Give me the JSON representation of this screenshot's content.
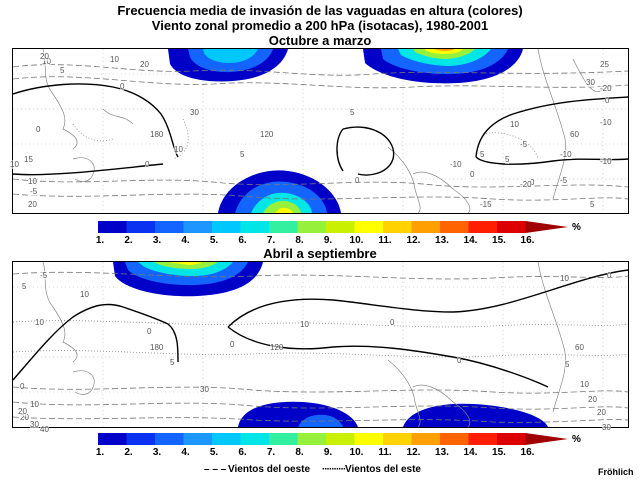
{
  "titles": {
    "line1": "Frecuencia media de invasión de las vaguadas en altura (colores)",
    "line2": "Viento zonal promedio a 200 hPa (isotacas), 1980-2001",
    "panel1": "Octubre a marzo",
    "panel2": "Abril a septiembre"
  },
  "colorbar": {
    "unit": "%",
    "labels": [
      "1.",
      "2.",
      "3.",
      "4.",
      "5.",
      "6.",
      "7.",
      "8.",
      "9.",
      "10.",
      "11.",
      "12.",
      "13.",
      "14.",
      "15.",
      "16."
    ],
    "colors": [
      "#0000c8",
      "#0a32f0",
      "#1464ff",
      "#1e96ff",
      "#00c8ff",
      "#00e6e6",
      "#32f0a0",
      "#96f03c",
      "#c8f000",
      "#ffff00",
      "#ffd200",
      "#ffa000",
      "#ff6400",
      "#ff1e00",
      "#dc0000",
      "#a00000"
    ]
  },
  "legend": {
    "westerly": "Vientos del oeste",
    "easterly": "Vientos del este"
  },
  "credit": "Fröhlich",
  "contour_labels": {
    "panel1": [
      "10",
      "5",
      "0",
      "15",
      "10",
      "10",
      "10",
      "30",
      "0",
      "25",
      "0",
      "-5",
      "-10",
      "5",
      "5",
      "5",
      "0",
      "-10",
      "-20",
      "20",
      "-5",
      "10",
      "20",
      "30",
      "-10",
      "0",
      "5",
      "5",
      "10",
      "20",
      "0",
      "0",
      "-5",
      "-10",
      "-15",
      "-20",
      "180",
      "120",
      "60"
    ],
    "panel2": [
      "-5",
      "5",
      "10",
      "10",
      "0",
      "10",
      "0",
      "0",
      "0",
      "0",
      "5",
      "10",
      "20",
      "20",
      "30",
      "10",
      "5",
      "0",
      "10",
      "20",
      "30",
      "40",
      "20",
      "30",
      "180",
      "120",
      "60"
    ]
  }
}
